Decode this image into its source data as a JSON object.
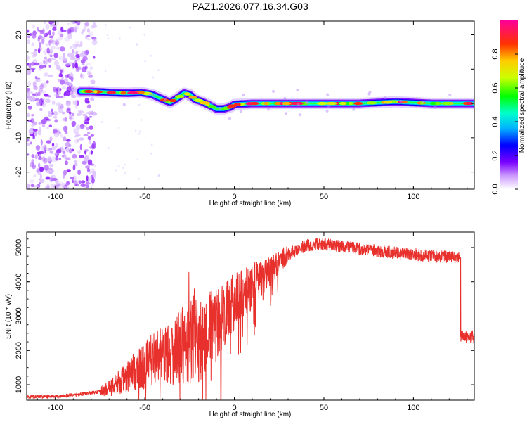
{
  "title": "PAZ1.2026.077.16.34.G03",
  "chart_data": [
    {
      "type": "heatmap",
      "xlabel": "Height of straight line (km)",
      "ylabel": "Frequency (Hz)",
      "xlim": [
        -116,
        134
      ],
      "ylim": [
        -25,
        24
      ],
      "xticks": [
        -100,
        -50,
        0,
        50,
        100
      ],
      "yticks": [
        20,
        10,
        0,
        -10,
        -20
      ],
      "colorbar": {
        "label": "Normalized spectral amplitude",
        "range": [
          0,
          1
        ],
        "ticks": [
          "0.0",
          "0.2",
          "0.4",
          "0.6",
          "0.8"
        ]
      },
      "ridge": {
        "x": [
          -86,
          -80,
          -70,
          -60,
          -52,
          -46,
          -40,
          -36,
          -32,
          -28,
          -25,
          -22,
          -18,
          -14,
          -10,
          -6,
          -2,
          0,
          10,
          30,
          50,
          70,
          90,
          110,
          134
        ],
        "y": [
          3.5,
          3.5,
          3.2,
          3.0,
          3.2,
          2.6,
          1.2,
          0.3,
          1.5,
          3.0,
          2.6,
          1.2,
          0.5,
          -0.5,
          -1.6,
          -1.6,
          -1.0,
          -0.3,
          0.0,
          0.0,
          0.0,
          0.0,
          0.5,
          0.0,
          0.0
        ]
      }
    },
    {
      "type": "line",
      "xlabel": "Height of straight line (km)",
      "ylabel": "SNR (10 * v/v)",
      "xlim": [
        -116,
        134
      ],
      "ylim": [
        550,
        5450
      ],
      "xticks": [
        -100,
        -50,
        0,
        50,
        100
      ],
      "yticks": [
        1000,
        2000,
        3000,
        4000,
        5000
      ],
      "series": [
        {
          "name": "SNR",
          "color": "#e8302c",
          "x": [
            -116,
            -100,
            -90,
            -80,
            -75,
            -70,
            -65,
            -60,
            -55,
            -50,
            -45,
            -40,
            -35,
            -30,
            -25,
            -22,
            -20,
            -15,
            -10,
            -5,
            0,
            5,
            10,
            15,
            20,
            25,
            30,
            35,
            40,
            45,
            50,
            60,
            70,
            80,
            90,
            100,
            110,
            120,
            126,
            126.5,
            134
          ],
          "y": [
            650,
            650,
            700,
            760,
            800,
            900,
            1050,
            1250,
            1400,
            1550,
            1800,
            1900,
            2000,
            2100,
            2200,
            2600,
            2300,
            2600,
            2800,
            3100,
            3400,
            3650,
            3900,
            4100,
            4350,
            4600,
            4800,
            4950,
            5050,
            5100,
            5100,
            5050,
            4950,
            4900,
            4850,
            4800,
            4750,
            4720,
            4700,
            2400,
            2400
          ]
        }
      ]
    }
  ]
}
